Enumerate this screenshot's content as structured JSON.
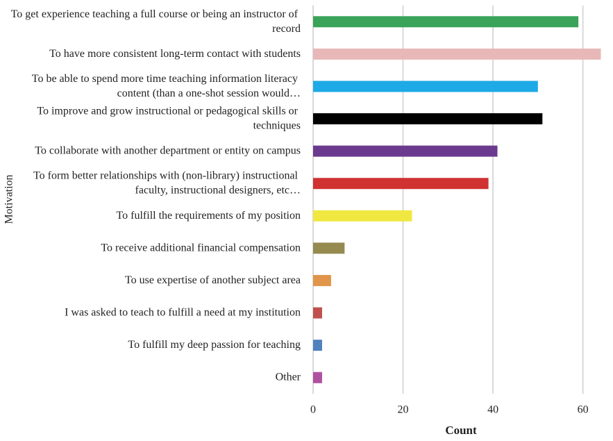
{
  "chart_data": {
    "type": "barh",
    "xlabel": "Count",
    "ylabel": "Motivation",
    "categories": [
      "To get experience teaching a full course or being an instructor of record",
      "To have more consistent long-term contact with students",
      "To be able to spend more time teaching information literacy content (than a one-shot session would…",
      "To improve and grow instructional or pedagogical skills or techniques",
      "To collaborate with another department or entity on campus",
      "To form better relationships with (non-library) instructional faculty, instructional designers, etc…",
      "To fulfill the requirements of my position",
      "To receive additional financial compensation",
      "To use expertise of another subject area",
      "I was asked to teach to fulfill a need at my institution",
      "To fulfill my deep passion for teaching",
      "Other"
    ],
    "values": [
      59,
      64,
      50,
      51,
      41,
      39,
      22,
      7,
      4,
      2,
      2,
      2
    ],
    "colors": [
      "#3aa35a",
      "#e8b8b8",
      "#1eaae7",
      "#000000",
      "#6b3a8e",
      "#d03232",
      "#f0e840",
      "#958a50",
      "#e0954a",
      "#c0504d",
      "#4f81bd",
      "#b050a0"
    ],
    "xlim": [
      0,
      65
    ],
    "xticks": [
      0,
      20,
      40,
      60
    ],
    "grid": true
  }
}
